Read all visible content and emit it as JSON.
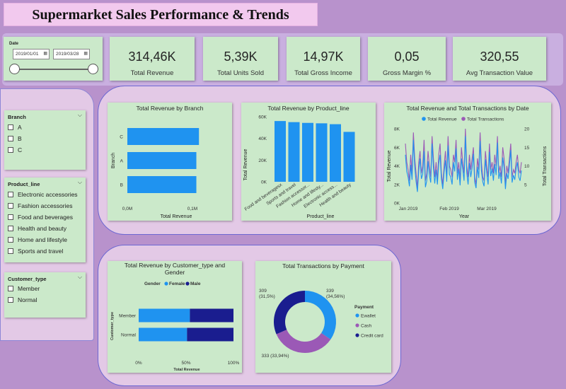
{
  "title": "Supermarket Sales Performance & Trends",
  "date_slicer": {
    "label": "Date",
    "start": "2019/01/01",
    "end": "2019/03/28",
    "calendar_icon": "calendar-icon"
  },
  "kpis": [
    {
      "value": "314,46K",
      "label": "Total Revenue"
    },
    {
      "value": "5,39K",
      "label": "Total Units Sold"
    },
    {
      "value": "14,97K",
      "label": "Total Gross Income"
    },
    {
      "value": "0,05",
      "label": "Gross Margin %"
    },
    {
      "value": "320,55",
      "label": "Avg Transaction Value"
    }
  ],
  "slicers": {
    "branch": {
      "title": "Branch",
      "items": [
        "A",
        "B",
        "C"
      ]
    },
    "product_line": {
      "title": "Product_line",
      "items": [
        "Electronic accessories",
        "Fashion accessories",
        "Food and beverages",
        "Health and beauty",
        "Home and lifestyle",
        "Sports and travel"
      ]
    },
    "customer_type": {
      "title": "Customer_type",
      "items": [
        "Member",
        "Normal"
      ]
    }
  },
  "chart_data": [
    {
      "id": "revenue_by_branch",
      "type": "bar",
      "orientation": "horizontal",
      "title": "Total Revenue by Branch",
      "categories": [
        "C",
        "A",
        "B"
      ],
      "values": [
        0.11,
        0.106,
        0.106
      ],
      "xlabel": "Total Revenue",
      "ylabel": "Branch",
      "xticks": [
        "0,0M",
        "0,1M"
      ],
      "xlim": [
        0,
        0.1
      ],
      "color": "#1f93f0"
    },
    {
      "id": "revenue_by_product_line",
      "type": "bar",
      "title": "Total Revenue by Product_line",
      "categories": [
        "Food and beveragesx",
        "Sports and travel",
        "Fashion accessor...",
        "Home and lifesty...",
        "Electronic access...",
        "Health and beauty"
      ],
      "values": [
        56000,
        55000,
        54300,
        53900,
        53100,
        46000
      ],
      "xlabel": "Product_line",
      "ylabel": "Total Revenue",
      "yticks": [
        "60K",
        "40K",
        "20K",
        "0K"
      ],
      "ylim": [
        0,
        60000
      ],
      "color": "#1f93f0"
    },
    {
      "id": "revenue_transactions_by_date",
      "type": "line",
      "title": "Total Revenue and Total Transactions by Date",
      "series": [
        {
          "name": "Total Revenue",
          "color": "#1f93f0",
          "axis": "left",
          "values": [
            5200,
            3400,
            2800,
            1800,
            4100,
            2500,
            6800,
            3900,
            2300,
            1200,
            3500,
            4800,
            2600,
            3100,
            5600,
            1700,
            2400,
            4500,
            3000,
            2200,
            6400,
            3800,
            2100,
            3600,
            2000,
            4200,
            5200,
            2600,
            1500,
            3300,
            4600,
            2300,
            6200,
            3100,
            2800,
            2000,
            4400,
            3400,
            5900,
            2500,
            3700,
            1900,
            4800,
            3600,
            2400,
            7200,
            3300,
            2000,
            4300,
            2800,
            3800,
            5300,
            2200,
            1600,
            3900,
            2700,
            6700,
            3500,
            2300,
            1800,
            4700,
            3200,
            2000,
            5500,
            2900,
            3700,
            2400,
            4200,
            3000,
            6500,
            2600,
            3300,
            2100,
            4900,
            3800,
            1500,
            3200,
            2600,
            4000,
            5700,
            2200,
            3000,
            2500,
            3700,
            4400,
            2800,
            2400,
            3500
          ]
        },
        {
          "name": "Total Transactions",
          "color": "#9b59b6",
          "axis": "right",
          "values": [
            16,
            11,
            9,
            6,
            13,
            8,
            19,
            12,
            8,
            4,
            11,
            14,
            8,
            10,
            17,
            6,
            8,
            14,
            10,
            7,
            18,
            12,
            7,
            11,
            6,
            13,
            16,
            8,
            5,
            10,
            14,
            7,
            18,
            10,
            9,
            7,
            13,
            11,
            17,
            8,
            11,
            6,
            15,
            11,
            8,
            20,
            10,
            7,
            13,
            9,
            12,
            15,
            7,
            5,
            12,
            9,
            19,
            11,
            7,
            6,
            14,
            10,
            7,
            16,
            9,
            11,
            8,
            13,
            10,
            18,
            8,
            10,
            7,
            15,
            12,
            5,
            10,
            8,
            12,
            16,
            7,
            9,
            8,
            11,
            13,
            9,
            8,
            11
          ]
        }
      ],
      "xticks": [
        "Jan 2019",
        "Feb 2019",
        "Mar 2019"
      ],
      "xlabel": "Year",
      "ylabel_left": "Total Revenue",
      "ylabel_right": "Total Transactions",
      "yticks_left": [
        "8K",
        "6K",
        "4K",
        "2K",
        "0K"
      ],
      "yticks_right": [
        "20",
        "15",
        "10",
        "5"
      ],
      "ylim_left": [
        0,
        8000
      ],
      "ylim_right": [
        0,
        20
      ],
      "legend": "top"
    },
    {
      "id": "revenue_by_customer_type_gender",
      "type": "bar",
      "orientation": "horizontal",
      "stacked": "100%",
      "title": "Total Revenue by Customer_type and Gender",
      "categories": [
        "Member",
        "Normal"
      ],
      "series": [
        {
          "name": "Female",
          "color": "#1f93f0",
          "values": [
            54,
            51
          ]
        },
        {
          "name": "Male",
          "color": "#1a1d8f",
          "values": [
            46,
            49
          ]
        }
      ],
      "legend_title": "Gender",
      "xlabel": "Total Revenue",
      "ylabel": "Customer_type",
      "xticks": [
        "0%",
        "50%",
        "100%"
      ]
    },
    {
      "id": "transactions_by_payment",
      "type": "pie",
      "donut": true,
      "title": "Total Transactions by Payment",
      "legend_title": "Payment",
      "slices": [
        {
          "name": "Ewallet",
          "value": 339,
          "percent": "34,56%",
          "color": "#1f93f0"
        },
        {
          "name": "Cash",
          "value": 333,
          "percent": "33,94%",
          "color": "#9b59b6"
        },
        {
          "name": "Credit card",
          "value": 309,
          "percent": "31,5%",
          "color": "#1a1d8f"
        }
      ]
    }
  ]
}
